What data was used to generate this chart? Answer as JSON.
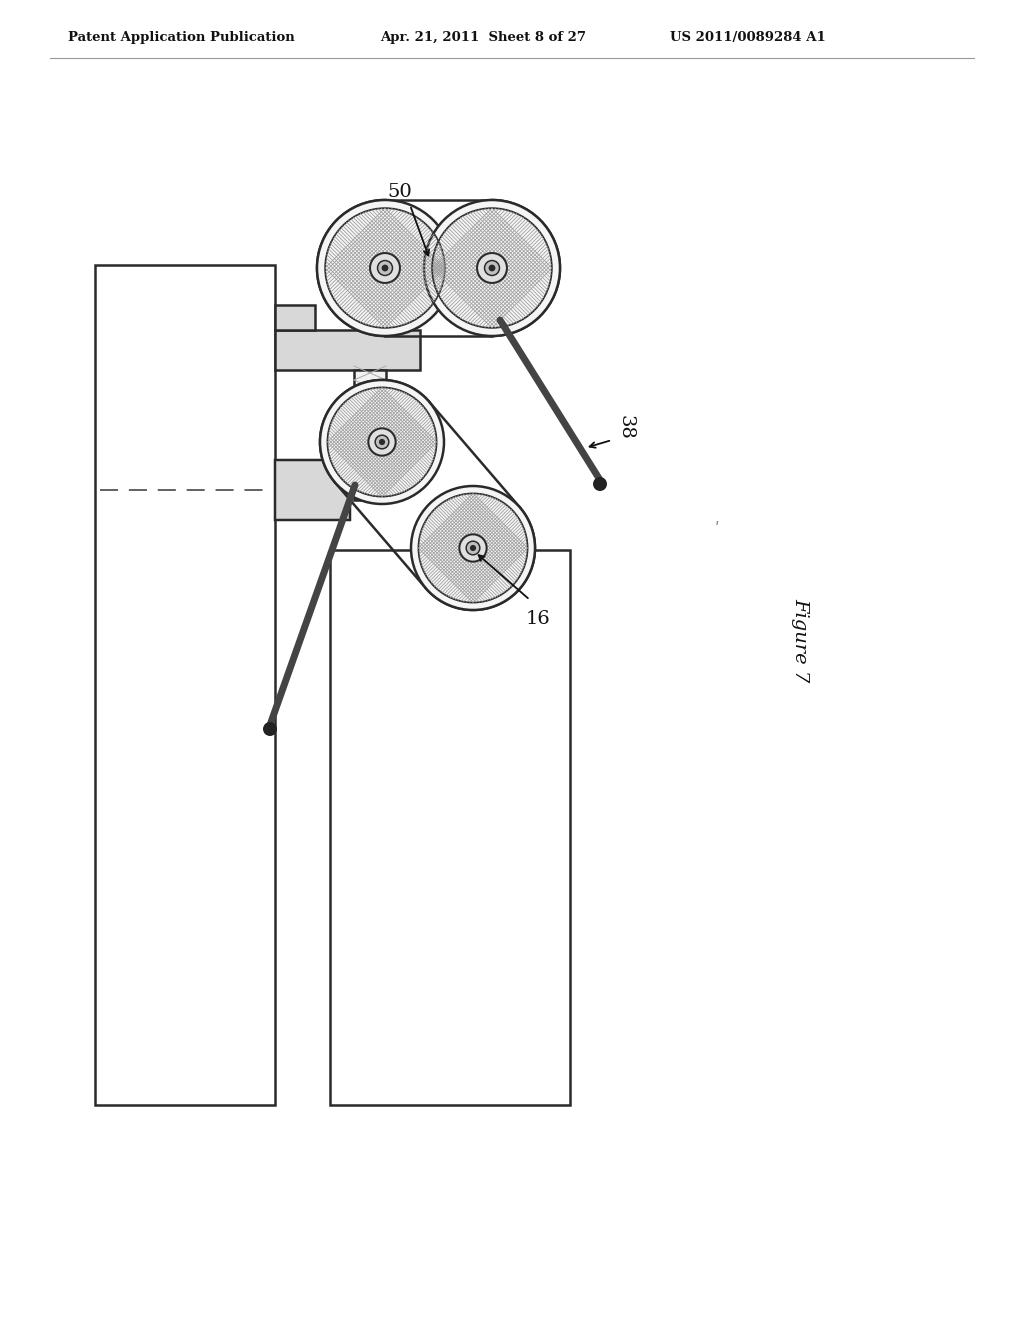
{
  "bg_color": "#ffffff",
  "header_left": "Patent Application Publication",
  "header_center": "Apr. 21, 2011  Sheet 8 of 27",
  "header_right": "US 2011/0089284 A1",
  "figure_label": "Figure 7",
  "label_50": "50",
  "label_38": "38",
  "label_16": "16",
  "line_color": "#2a2a2a",
  "gray_fill": "#d8d8d8",
  "light_fill": "#f2f2f2",
  "hatch_color": "#777777",
  "dashed_color": "#555555",
  "rod_color": "#444444"
}
